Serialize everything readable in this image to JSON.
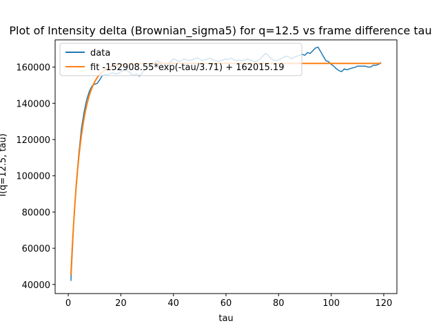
{
  "chart_data": {
    "type": "line",
    "title": "Plot of Intensity delta (Brownian_sigma5) for q=12.5 vs frame difference tau",
    "xlabel": "tau",
    "ylabel": "I(q=12.5, tau)",
    "xlim": [
      -5,
      125
    ],
    "ylim": [
      35000,
      175000
    ],
    "xticks": [
      0,
      20,
      40,
      60,
      80,
      100,
      120
    ],
    "yticks": [
      40000,
      60000,
      80000,
      100000,
      120000,
      140000,
      160000
    ],
    "grid": false,
    "legend_position": "top-left",
    "series": [
      {
        "name": "data",
        "color": "#1f77b4",
        "x": [
          1,
          2,
          3,
          4,
          5,
          6,
          7,
          8,
          9,
          10,
          11,
          12,
          13,
          14,
          15,
          16,
          17,
          18,
          19,
          20,
          21,
          22,
          23,
          24,
          25,
          26,
          27,
          28,
          29,
          30,
          31,
          32,
          33,
          34,
          35,
          36,
          37,
          38,
          39,
          40,
          41,
          42,
          43,
          44,
          45,
          46,
          47,
          48,
          49,
          50,
          51,
          52,
          53,
          54,
          55,
          56,
          57,
          58,
          59,
          60,
          61,
          62,
          63,
          64,
          65,
          66,
          67,
          68,
          69,
          70,
          71,
          72,
          73,
          74,
          75,
          76,
          77,
          78,
          79,
          80,
          81,
          82,
          83,
          84,
          85,
          86,
          87,
          88,
          89,
          90,
          91,
          92,
          93,
          94,
          95,
          96,
          97,
          98,
          99,
          100,
          101,
          102,
          103,
          104,
          105,
          106,
          107,
          108,
          109,
          110,
          111,
          112,
          113,
          114,
          115,
          116,
          117,
          118,
          119
        ],
        "y": [
          42000,
          72000,
          95000,
          112000,
          126000,
          135000,
          142000,
          146500,
          149500,
          150500,
          151000,
          153000,
          155500,
          156000,
          155500,
          156500,
          156800,
          156200,
          156500,
          157500,
          158000,
          158500,
          157500,
          156000,
          155500,
          156200,
          155000,
          156500,
          158500,
          159500,
          160500,
          161500,
          162500,
          163500,
          162500,
          162000,
          161500,
          162000,
          163000,
          164500,
          164000,
          163000,
          163500,
          164500,
          164000,
          163500,
          164000,
          164500,
          165000,
          164500,
          163500,
          164000,
          164500,
          165000,
          164000,
          163500,
          163000,
          163500,
          164000,
          164500,
          164200,
          165000,
          164000,
          163500,
          164000,
          163500,
          164000,
          164500,
          164000,
          163500,
          163000,
          163500,
          164500,
          166000,
          167500,
          166500,
          165000,
          164000,
          163500,
          164000,
          164500,
          165500,
          166000,
          165500,
          164500,
          165500,
          166000,
          166500,
          167000,
          166500,
          168000,
          167500,
          169000,
          170500,
          171000,
          168500,
          166000,
          163500,
          163000,
          161500,
          160500,
          159000,
          158000,
          157500,
          159000,
          158500,
          159000,
          159500,
          159800,
          160500,
          160500,
          160500,
          160500,
          160000,
          160000,
          161000,
          161000,
          161500,
          162500
        ]
      },
      {
        "name": "fit -152908.55*exp(-tau/3.71) + 162015.19",
        "color": "#ff7f0e",
        "function": {
          "a": -152908.55,
          "tau0": 3.71,
          "c": 162015.19
        },
        "x_start": 1,
        "x_end": 119
      }
    ]
  }
}
